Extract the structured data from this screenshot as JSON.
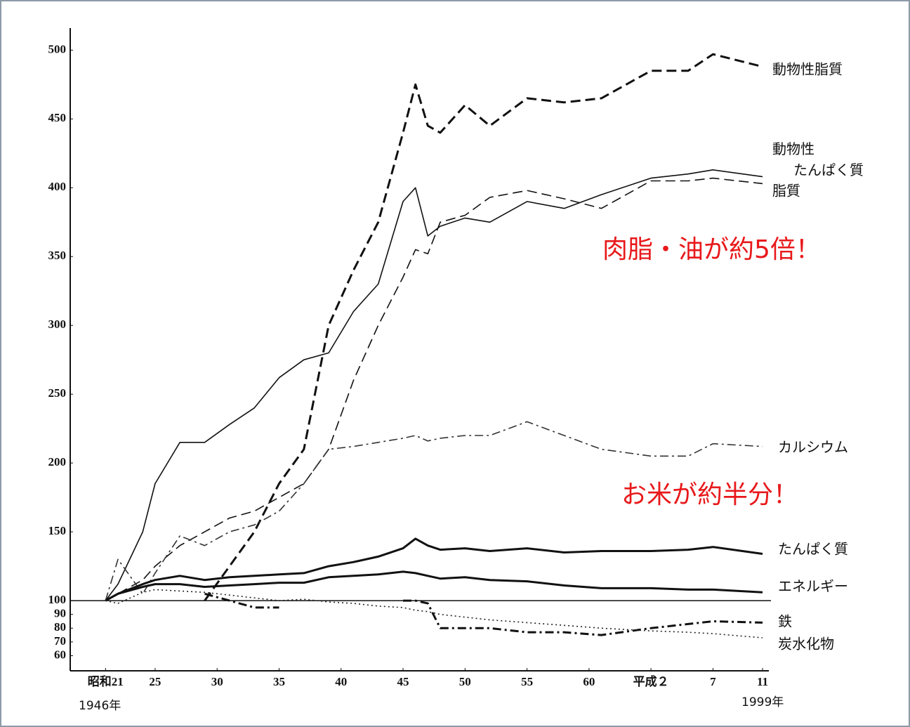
{
  "chart_data": {
    "type": "line",
    "x": [
      1946,
      1947,
      1949,
      1950,
      1952,
      1954,
      1956,
      1958,
      1960,
      1962,
      1964,
      1966,
      1968,
      1970,
      1971,
      1972,
      1973,
      1975,
      1977,
      1980,
      1983,
      1986,
      1990,
      1993,
      1995,
      1999
    ],
    "series": [
      {
        "name": "動物性脂質",
        "color": "#111111",
        "line_style": "dashed",
        "weight": "bold",
        "values": [
          null,
          null,
          null,
          null,
          null,
          100,
          125,
          150,
          185,
          210,
          300,
          340,
          375,
          440,
          475,
          445,
          440,
          460,
          445,
          465,
          462,
          465,
          485,
          485,
          497,
          488
        ]
      },
      {
        "name": "動物性\nたんぱく質",
        "color": "#111111",
        "line_style": "solid",
        "weight": "normal",
        "values": [
          100,
          112,
          150,
          185,
          215,
          215,
          228,
          240,
          262,
          275,
          280,
          310,
          330,
          390,
          400,
          365,
          372,
          378,
          375,
          390,
          385,
          395,
          407,
          410,
          413,
          408
        ]
      },
      {
        "name": "脂質",
        "color": "#111111",
        "line_style": "dashed",
        "weight": "normal",
        "values": [
          100,
          105,
          115,
          125,
          140,
          150,
          160,
          165,
          175,
          185,
          210,
          260,
          300,
          335,
          355,
          352,
          375,
          380,
          393,
          398,
          392,
          385,
          405,
          405,
          407,
          403
        ]
      },
      {
        "name": "カルシウム",
        "color": "#333333",
        "line_style": "dashdot",
        "weight": "normal",
        "values": [
          100,
          130,
          105,
          120,
          147,
          140,
          150,
          155,
          165,
          185,
          210,
          212,
          215,
          218,
          220,
          216,
          218,
          220,
          220,
          230,
          220,
          210,
          205,
          205,
          214,
          212
        ]
      },
      {
        "name": "たんぱく質",
        "color": "#111111",
        "line_style": "solid",
        "weight": "bold",
        "values": [
          100,
          105,
          112,
          115,
          118,
          115,
          117,
          118,
          119,
          120,
          125,
          128,
          132,
          138,
          145,
          140,
          137,
          138,
          136,
          138,
          135,
          136,
          136,
          137,
          139,
          134
        ]
      },
      {
        "name": "エネルギー",
        "color": "#111111",
        "line_style": "solid",
        "weight": "bold",
        "values": [
          100,
          105,
          110,
          112,
          112,
          110,
          111,
          112,
          113,
          113,
          117,
          118,
          119,
          121,
          120,
          118,
          116,
          117,
          115,
          114,
          111,
          109,
          109,
          108,
          108,
          106
        ]
      },
      {
        "name": "鉄",
        "color": "#111111",
        "line_style": "dashdot",
        "weight": "bold",
        "values": [
          null,
          null,
          null,
          null,
          null,
          105,
          100,
          95,
          95,
          null,
          null,
          null,
          null,
          100,
          100,
          98,
          80,
          80,
          80,
          77,
          77,
          75,
          80,
          83,
          85,
          84
        ]
      },
      {
        "name": "炭水化物",
        "color": "#222222",
        "line_style": "dotted",
        "weight": "normal",
        "values": [
          100,
          98,
          106,
          108,
          107,
          106,
          104,
          102,
          100,
          101,
          99,
          98,
          96,
          95,
          93,
          92,
          90,
          88,
          86,
          84,
          82,
          80,
          78,
          77,
          76,
          73
        ]
      }
    ],
    "xlim": [
      1944,
      1999.5
    ],
    "xticks": [
      {
        "value": 1946,
        "label": "昭和21"
      },
      {
        "value": 1950,
        "label": "25"
      },
      {
        "value": 1955,
        "label": "30"
      },
      {
        "value": 1960,
        "label": "35"
      },
      {
        "value": 1965,
        "label": "40"
      },
      {
        "value": 1970,
        "label": "45"
      },
      {
        "value": 1975,
        "label": "50"
      },
      {
        "value": 1980,
        "label": "55"
      },
      {
        "value": 1985,
        "label": "60"
      },
      {
        "value": 1990,
        "label": "平成２"
      },
      {
        "value": 1995,
        "label": "7"
      },
      {
        "value": 1999,
        "label": "11"
      }
    ],
    "ylim": [
      49,
      516
    ],
    "yticks": [
      60,
      70,
      80,
      90,
      100,
      150,
      200,
      250,
      300,
      350,
      400,
      450,
      500
    ],
    "hline": 100,
    "x_notes": [
      "1946年",
      "1999年"
    ],
    "annotations": [
      "肉脂・油が約5倍！",
      "お米が約半分！"
    ]
  }
}
